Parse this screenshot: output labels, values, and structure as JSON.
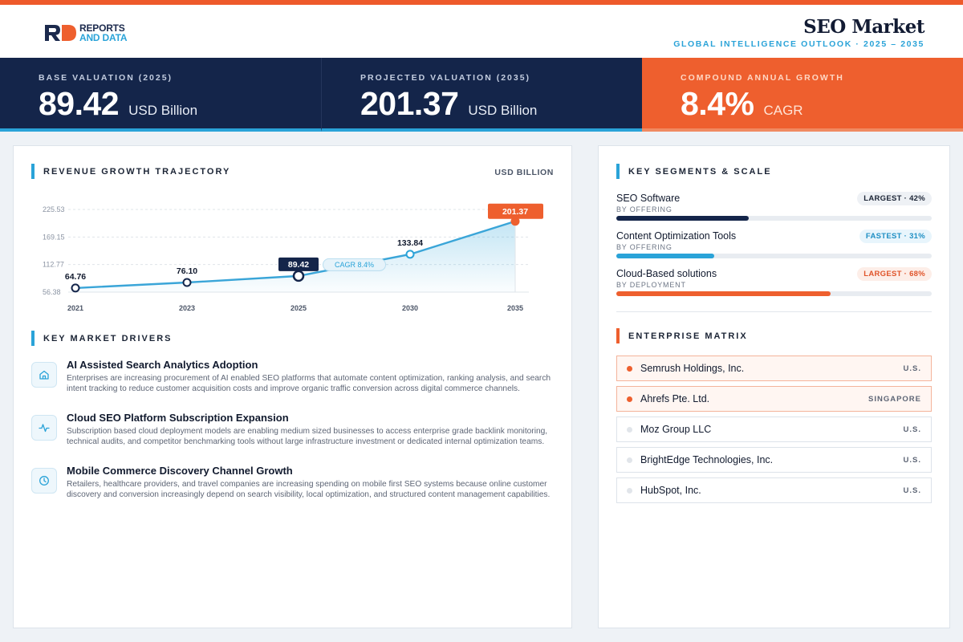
{
  "colors": {
    "accent": "#ee5f2e",
    "navy": "#14254a",
    "blue": "#2aa3d8"
  },
  "logo": {
    "line1": "REPORTS",
    "line2": "AND DATA"
  },
  "header": {
    "title": "SEO Market",
    "subtitle": "GLOBAL INTELLIGENCE OUTLOOK  ·  2025 – 2035"
  },
  "kpis": [
    {
      "label": "BASE VALUATION (2025)",
      "value": "89.42",
      "unit": "USD Billion"
    },
    {
      "label": "PROJECTED VALUATION (2035)",
      "value": "201.37",
      "unit": "USD Billion"
    },
    {
      "label": "COMPOUND ANNUAL GROWTH",
      "value": "8.4%",
      "unit": "CAGR"
    }
  ],
  "trajectory": {
    "title": "REVENUE GROWTH TRAJECTORY",
    "unit_label": "USD BILLION"
  },
  "chart_data": {
    "type": "line",
    "x": [
      "2021",
      "2023",
      "2025",
      "2030",
      "2035"
    ],
    "y": [
      64.76,
      76.1,
      89.42,
      133.84,
      201.37
    ],
    "labels": [
      "64.76",
      "76.10",
      "89.42",
      "133.84",
      "201.37"
    ],
    "y_ticks": [
      "56.38",
      "112.77",
      "169.15",
      "225.53"
    ],
    "ylim": [
      56.38,
      225.53
    ],
    "annotation": "CAGR 8.4%",
    "area_fill": true,
    "grid": true
  },
  "drivers": {
    "title": "KEY MARKET DRIVERS",
    "items": [
      {
        "icon": "home-icon",
        "title": "AI Assisted Search Analytics Adoption",
        "desc": "Enterprises are increasing procurement of AI enabled SEO platforms that automate content optimization, ranking analysis, and search intent tracking to reduce customer acquisition costs and improve organic traffic conversion across digital commerce channels."
      },
      {
        "icon": "activity-icon",
        "title": "Cloud SEO Platform Subscription Expansion",
        "desc": "Subscription based cloud deployment models are enabling medium sized businesses to access enterprise grade backlink monitoring, technical audits, and competitor benchmarking tools without large infrastructure investment or dedicated internal optimization teams."
      },
      {
        "icon": "clock-icon",
        "title": "Mobile Commerce Discovery Channel Growth",
        "desc": "Retailers, healthcare providers, and travel companies are increasing spending on mobile first SEO systems because online customer discovery and conversion increasingly depend on search visibility, local optimization, and structured content management capabilities."
      }
    ]
  },
  "segments": {
    "title": "KEY SEGMENTS & SCALE",
    "items": [
      {
        "name": "SEO Software",
        "sub": "BY OFFERING",
        "badge": "LARGEST · 42%",
        "share": 0.42,
        "bar_color": "#14254a",
        "badge_bg": "#eef1f5",
        "badge_fg": "#1b2435"
      },
      {
        "name": "Content Optimization Tools",
        "sub": "BY OFFERING",
        "badge": "FASTEST · 31%",
        "share": 0.31,
        "bar_color": "#2aa3d8",
        "badge_bg": "#e8f5fc",
        "badge_fg": "#1f8fc4"
      },
      {
        "name": "Cloud-Based solutions",
        "sub": "BY DEPLOYMENT",
        "badge": "LARGEST · 68%",
        "share": 0.68,
        "bar_color": "#ee5f2e",
        "badge_bg": "#fdeee8",
        "badge_fg": "#e0542a"
      }
    ]
  },
  "matrix": {
    "title": "ENTERPRISE MATRIX",
    "items": [
      {
        "name": "Semrush Holdings, Inc.",
        "loc": "U.S.",
        "highlight": true
      },
      {
        "name": "Ahrefs Pte. Ltd.",
        "loc": "SINGAPORE",
        "highlight": true
      },
      {
        "name": "Moz Group LLC",
        "loc": "U.S.",
        "highlight": false
      },
      {
        "name": "BrightEdge Technologies, Inc.",
        "loc": "U.S.",
        "highlight": false
      },
      {
        "name": "HubSpot, Inc.",
        "loc": "U.S.",
        "highlight": false
      }
    ]
  }
}
